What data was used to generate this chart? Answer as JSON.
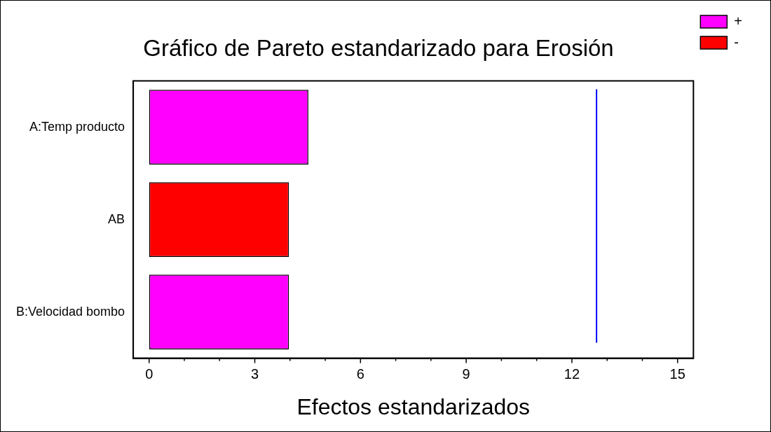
{
  "chart_data": {
    "type": "bar",
    "orientation": "horizontal",
    "stacked": true,
    "title": "Gráfico de Pareto estandarizado para Erosión",
    "xlabel": "Efectos estandarizados",
    "categories": [
      "A:Temp producto",
      "AB",
      "B:Velocidad bombo"
    ],
    "series": [
      {
        "name": "+",
        "color": "#ff00ff",
        "values": [
          4.52,
          null,
          3.97
        ]
      },
      {
        "name": "-",
        "color": "#ff0000",
        "values": [
          null,
          3.97,
          null
        ]
      }
    ],
    "xlim": [
      -0.45,
      15.45
    ],
    "xticks": [
      0,
      {
        "value": 1,
        "label": null
      },
      {
        "value": 2,
        "label": null
      },
      3,
      {
        "value": 4,
        "label": null
      },
      {
        "value": 5,
        "label": null
      },
      6,
      {
        "value": 7,
        "label": null
      },
      {
        "value": 8,
        "label": null
      },
      9,
      {
        "value": 10,
        "label": null
      },
      {
        "value": 11,
        "label": null
      },
      12,
      {
        "value": 13,
        "label": null
      },
      {
        "value": 14,
        "label": null
      },
      15
    ],
    "ref_lines": [
      {
        "axis": "x",
        "value": 12.7,
        "color": "#0000ff"
      }
    ],
    "grid": false,
    "legend": "top right"
  }
}
